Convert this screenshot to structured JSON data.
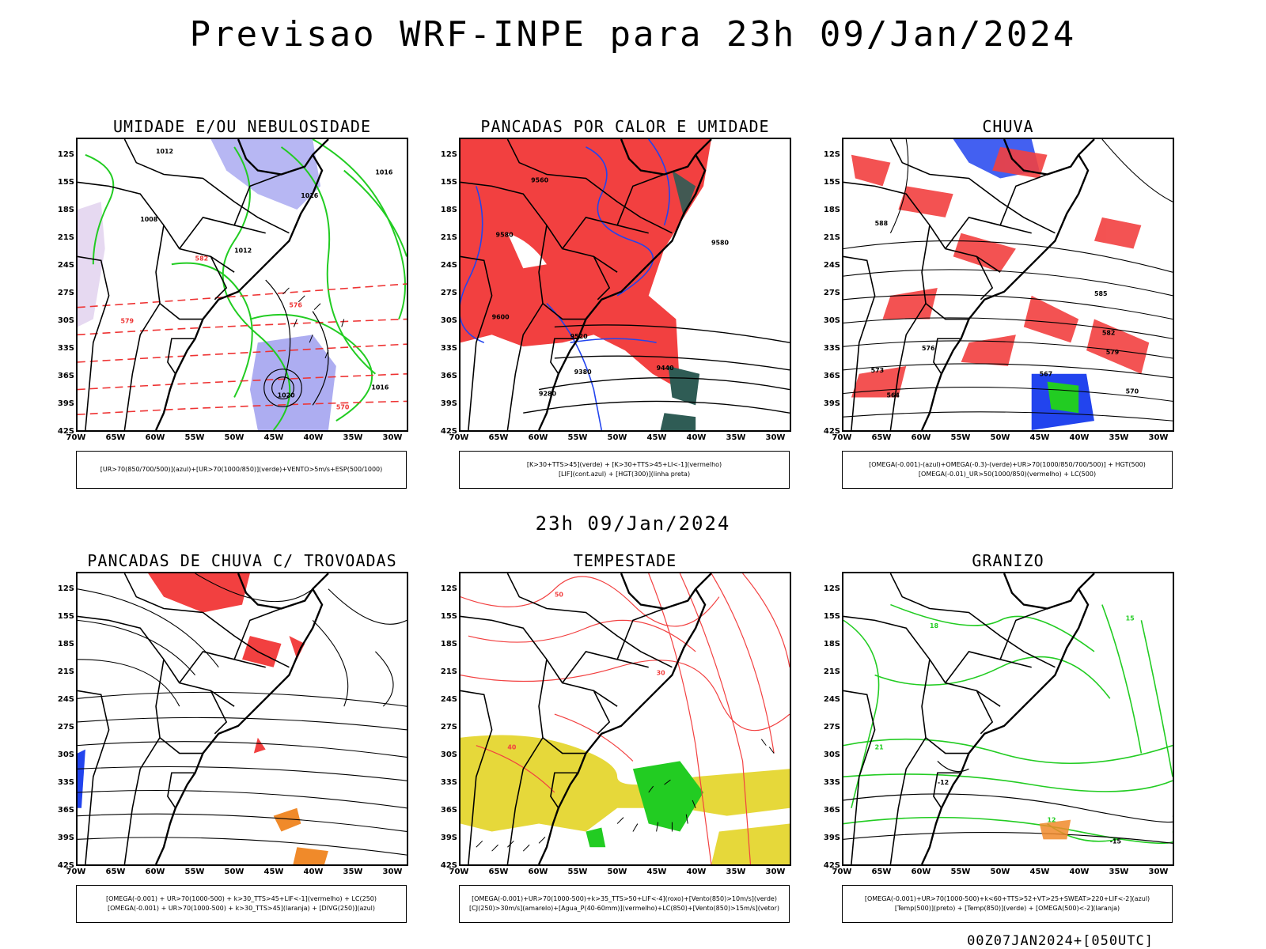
{
  "header": {
    "title": "Previsao WRF-INPE  para 23h 09/Jan/2024"
  },
  "subheader": {
    "title": "23h 09/Jan/2024"
  },
  "footer": {
    "run": "00Z07JAN2024+[050UTC]"
  },
  "axes": {
    "lat_labels": [
      "12S",
      "15S",
      "18S",
      "21S",
      "24S",
      "27S",
      "30S",
      "33S",
      "36S",
      "39S",
      "42S"
    ],
    "lon_labels": [
      "70W",
      "65W",
      "60W",
      "55W",
      "50W",
      "45W",
      "40W",
      "35W",
      "30W"
    ]
  },
  "colors": {
    "red": "#f24040",
    "green": "#22cc22",
    "blue": "#2244ee",
    "lavender": "#9999ee",
    "yellow": "#e6d83a",
    "darkteal": "#2f5c55",
    "orange": "#f08a2a"
  },
  "panels": [
    {
      "title": "UMIDADE E/OU NEBULOSIDADE",
      "legend": [
        "[UR>70(850/700/500)](azul)+[UR>70(1000/850)](verde)+VENTO>5m/s+ESP(500/1000)"
      ],
      "labels": [
        "1012",
        "1016",
        "1008",
        "1012",
        "1016",
        "576",
        "582",
        "579",
        "570",
        "1020",
        "1016"
      ]
    },
    {
      "title": "PANCADAS POR CALOR E UMIDADE",
      "legend": [
        "[K>30+TTS>45](verde)  +  [K>30+TTS>45+LI<-1](vermelho)",
        "[LIF](cont.azul)  +  [HGT(300)](linha preta)"
      ],
      "labels": [
        "9560",
        "9580",
        "9600",
        "9520",
        "9440",
        "9380",
        "9280",
        "9580"
      ]
    },
    {
      "title": "CHUVA",
      "legend": [
        "[OMEGA(-0.001)-(azul)+OMEGA(-0.3)-(verde)+UR>70(1000/850/700/500)]  +  HGT(500)",
        "[OMEGA(-0.01)_UR>50(1000/850)(vermelho)  +  LC(500)"
      ],
      "labels": [
        "585",
        "582",
        "579",
        "576",
        "573",
        "570",
        "567",
        "564",
        "588"
      ]
    },
    {
      "title": "PANCADAS DE CHUVA C/ TROVOADAS",
      "legend": [
        "[OMEGA(-0.001) + UR>70(1000-500) + k>30_TTS>45+LIF<-1](vermelho) + LC(250)",
        "[OMEGA(-0.001) + UR>70(1000-500) + k>30_TTS>45](laranja) + [DIVG(250)](azul)"
      ],
      "labels": []
    },
    {
      "title": "TEMPESTADE",
      "legend": [
        "[OMEGA(-0.001)+UR>70(1000-500)+k>35_TTS>50+LIF<-4](roxo)+[Vento(850)>10m/s](verde)",
        "[CJ(250)>30m/s](amarelo)+[Agua_P(40-60mm)](vermelho)+LC(850)+[Vento(850)>15m/s](vetor)"
      ],
      "labels": [
        "50",
        "40",
        "30"
      ]
    },
    {
      "title": "GRANIZO",
      "legend": [
        "[OMEGA(-0.001)+UR>70(1000-500)+k<60+TTS>52+VT>25+SWEAT>220+LIF<-2](azul)",
        "[Temp(500)](preto) + [Temp(850)](verde) + [OMEGA(500)<-2](laranja)"
      ],
      "labels": [
        "-12",
        "18",
        "21",
        "15",
        "12",
        "-15"
      ]
    }
  ]
}
